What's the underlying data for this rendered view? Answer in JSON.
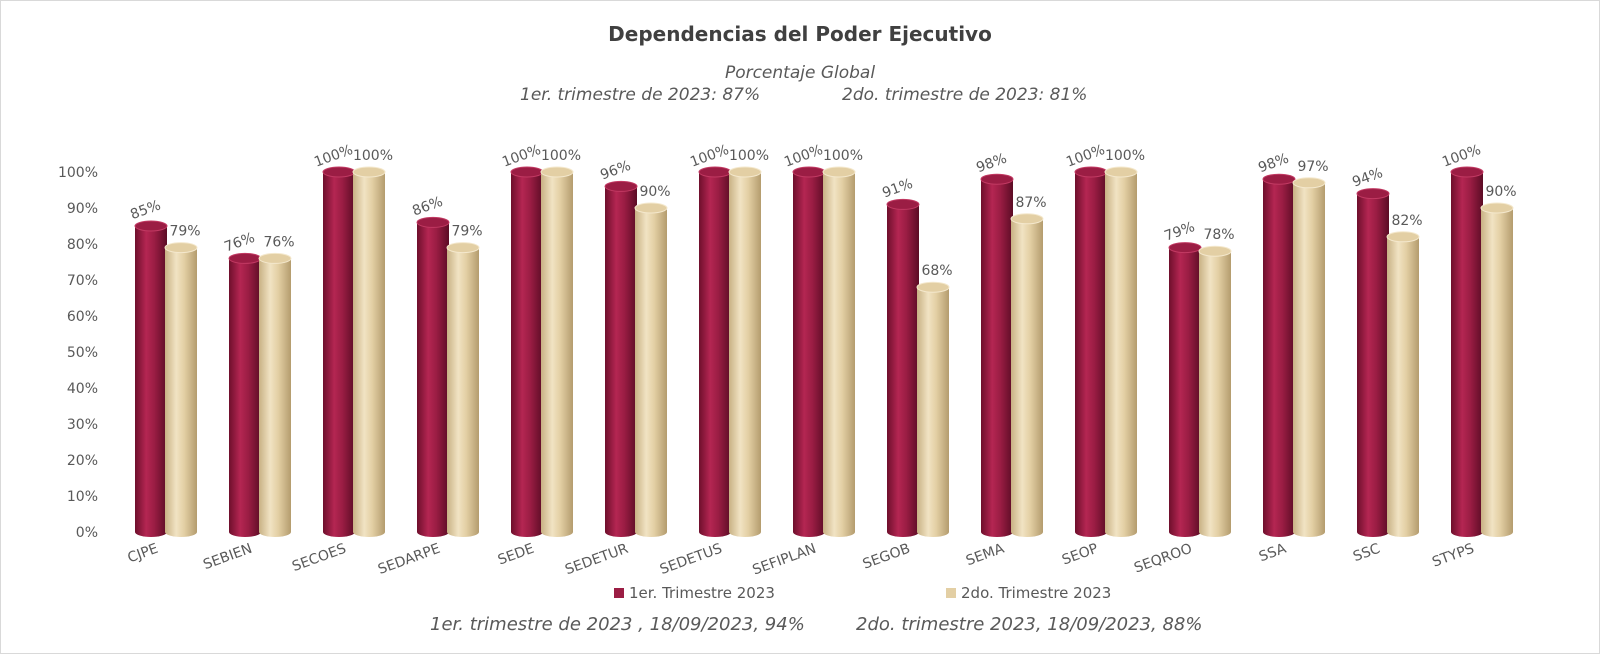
{
  "title": "Dependencias del Poder Ejecutivo",
  "subtitle": "Porcentaje Global",
  "notes": {
    "first": "1er. trimestre de 2023: 87%",
    "second": "2do. trimestre de 2023: 81%"
  },
  "footer": {
    "first": "1er. trimestre de 2023 , 18/09/2023, 94%",
    "second": "2do. trimestre 2023, 18/09/2023, 88%"
  },
  "colors": {
    "series1": "#9b1d44",
    "series2": "#e3cfa4"
  },
  "chart_data": {
    "type": "bar",
    "categories": [
      "CJPE",
      "SEBIEN",
      "SECOES",
      "SEDARPE",
      "SEDE",
      "SEDETUR",
      "SEDETUS",
      "SEFIPLAN",
      "SEGOB",
      "SEMA",
      "SEOP",
      "SEQROO",
      "SSA",
      "SSC",
      "STYPS"
    ],
    "series": [
      {
        "name": "1er. Trimestre 2023",
        "values": [
          85,
          76,
          100,
          86,
          100,
          96,
          100,
          100,
          91,
          98,
          100,
          79,
          98,
          94,
          100
        ],
        "labels": [
          "85%",
          "76%",
          "100%",
          "86%",
          "100%",
          "96%",
          "100%",
          "100%",
          "91%",
          "98%",
          "100%",
          "79%",
          "98%",
          "94%",
          "100%"
        ]
      },
      {
        "name": "2do. Trimestre 2023",
        "values": [
          79,
          76,
          100,
          79,
          100,
          90,
          100,
          100,
          68,
          87,
          100,
          78,
          97,
          82,
          90
        ],
        "labels": [
          "79%",
          "76%",
          "100%",
          "79%",
          "100%",
          "90%",
          "100%",
          "100%",
          "68%",
          "87%",
          "100%",
          "78%",
          "97%",
          "82%",
          "90%"
        ]
      }
    ],
    "ylim": [
      0,
      100
    ],
    "yticks": [
      "0%",
      "10%",
      "20%",
      "30%",
      "40%",
      "50%",
      "60%",
      "70%",
      "80%",
      "90%",
      "100%"
    ],
    "grid": false,
    "legend": "bottom"
  }
}
